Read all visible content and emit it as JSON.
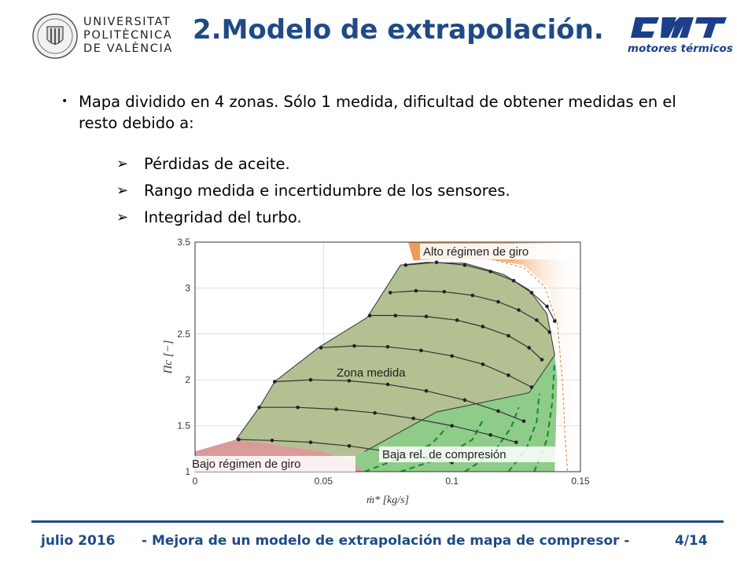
{
  "header": {
    "university_lines": [
      "UNIVERSITAT",
      "POLITÈCNICA",
      "DE VALÈNCIA"
    ],
    "title": "2.Modelo de extrapolación.",
    "cmt_caption": "motores térmicos",
    "brand_color": "#1f4a86"
  },
  "body": {
    "bullet": "Mapa dividido en 4 zonas. Sólo 1 medida, dificultad de obtener medidas en el resto debido a:",
    "items": [
      "Pérdidas de aceite.",
      "Rango medida e incertidumbre de los sensores.",
      "Integridad del turbo."
    ]
  },
  "chart_data": {
    "type": "line",
    "xlabel": "ṁ* [kg/s]",
    "ylabel": "Πc [−]",
    "xlim": [
      0,
      0.15
    ],
    "ylim": [
      1,
      3.5
    ],
    "xticks": [
      "0",
      "0.05",
      "0.1",
      "0.15"
    ],
    "yticks": [
      "1",
      "1.5",
      "2",
      "2.5",
      "3",
      "3.5"
    ],
    "grid": true,
    "zones": [
      {
        "label": "Alto régimen de giro",
        "color": "#f0a060"
      },
      {
        "label": "Zona medida",
        "color": "#b3c192"
      },
      {
        "label": "Baja rel. de compresión",
        "color": "#8fcc8a"
      },
      {
        "label": "Bajo régimen de giro",
        "color": "#d99a9a"
      }
    ],
    "series": [
      {
        "x": [
          0.017,
          0.03,
          0.045,
          0.06,
          0.075,
          0.09,
          0.1
        ],
        "y": [
          1.35,
          1.34,
          1.32,
          1.28,
          1.22,
          1.15,
          1.1
        ]
      },
      {
        "x": [
          0.025,
          0.04,
          0.055,
          0.07,
          0.085,
          0.1,
          0.115,
          0.125
        ],
        "y": [
          1.7,
          1.7,
          1.68,
          1.64,
          1.58,
          1.5,
          1.4,
          1.32
        ]
      },
      {
        "x": [
          0.031,
          0.045,
          0.06,
          0.075,
          0.09,
          0.105,
          0.118,
          0.128
        ],
        "y": [
          1.98,
          2.0,
          1.99,
          1.95,
          1.88,
          1.78,
          1.66,
          1.55
        ]
      },
      {
        "x": [
          0.049,
          0.062,
          0.075,
          0.088,
          0.1,
          0.112,
          0.122,
          0.131
        ],
        "y": [
          2.35,
          2.37,
          2.36,
          2.32,
          2.26,
          2.17,
          2.05,
          1.92
        ]
      },
      {
        "x": [
          0.068,
          0.078,
          0.09,
          0.102,
          0.112,
          0.122,
          0.13,
          0.135
        ],
        "y": [
          2.7,
          2.7,
          2.69,
          2.65,
          2.58,
          2.48,
          2.35,
          2.22
        ]
      },
      {
        "x": [
          0.076,
          0.086,
          0.097,
          0.108,
          0.118,
          0.126,
          0.133,
          0.138
        ],
        "y": [
          2.95,
          2.97,
          2.96,
          2.92,
          2.85,
          2.76,
          2.65,
          2.52
        ]
      },
      {
        "x": [
          0.082,
          0.094,
          0.105,
          0.115,
          0.124,
          0.131,
          0.137,
          0.14
        ],
        "y": [
          3.25,
          3.28,
          3.25,
          3.18,
          3.08,
          2.95,
          2.8,
          2.64
        ]
      }
    ]
  },
  "footer": {
    "date": "julio 2016",
    "title": "- Mejora de un modelo de extrapolación de mapa de compresor -",
    "page": "4/14"
  }
}
